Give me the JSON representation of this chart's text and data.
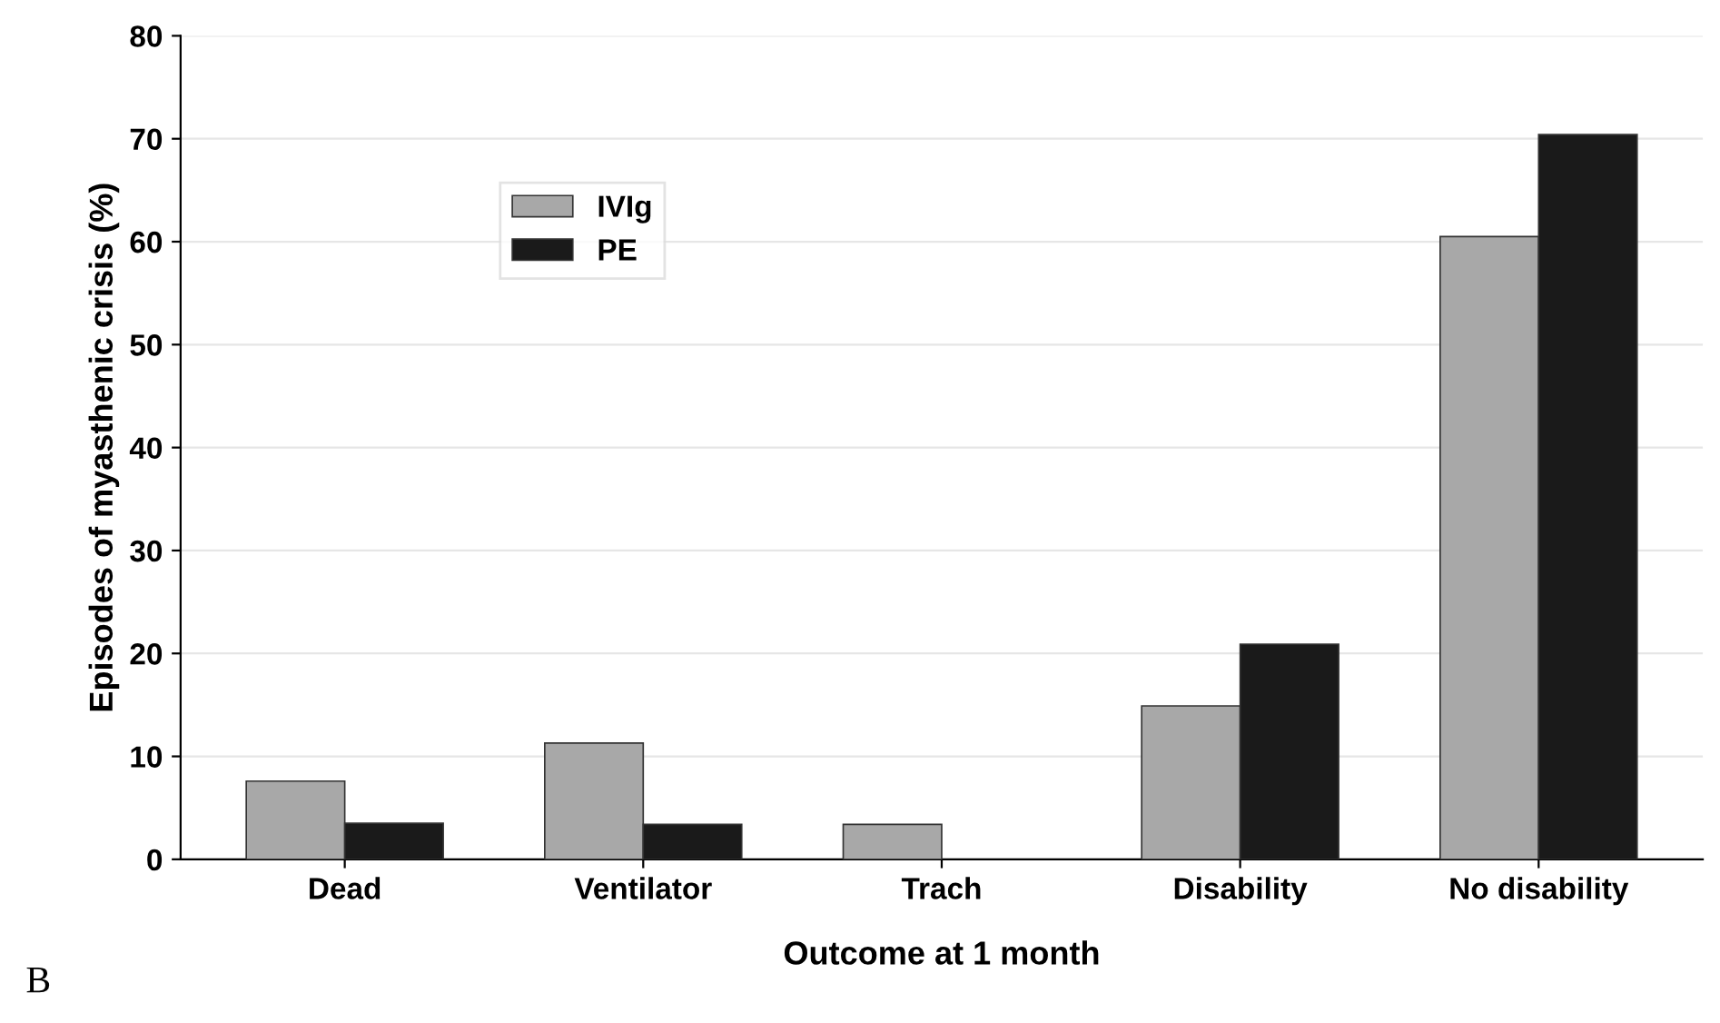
{
  "chart_data": {
    "type": "bar",
    "xlabel": "Outcome at 1 month",
    "ylabel": "Episodes of myasthenic crisis (%)",
    "categories": [
      "Dead",
      "Ventilator",
      "Trach",
      "Disability",
      "No disability"
    ],
    "series": [
      {
        "name": "IVIg",
        "color": "#a8a8a8",
        "values": [
          7.6,
          11.3,
          3.4,
          14.9,
          60.5
        ]
      },
      {
        "name": "PE",
        "color": "#1a1a1a",
        "values": [
          3.5,
          3.4,
          0,
          20.9,
          70.4
        ]
      }
    ],
    "ylim": [
      0,
      80
    ],
    "yticks": [
      0,
      10,
      20,
      30,
      40,
      50,
      60,
      70,
      80
    ],
    "grid": "y",
    "legend": "top left",
    "annotations": [
      "B"
    ]
  }
}
